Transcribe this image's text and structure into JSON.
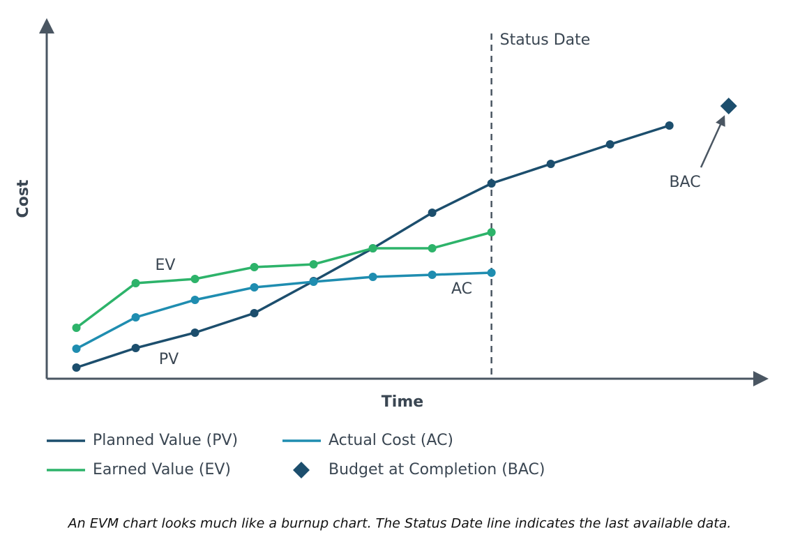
{
  "chart_data": {
    "type": "line",
    "x_label": "Time",
    "y_label": "Cost",
    "xlim": [
      0.5,
      12.65
    ],
    "ylim": [
      0,
      103
    ],
    "status_date": {
      "label": "Status Date",
      "x": 8
    },
    "series": [
      {
        "name": "Planned Value (PV)",
        "color": "#1c4e6d",
        "marker": "circle",
        "x": [
          1,
          2,
          3,
          4,
          5,
          6,
          7,
          8,
          9,
          10,
          11
        ],
        "values": [
          3.2,
          8.8,
          13.2,
          18.8,
          28,
          37.4,
          47.6,
          56,
          61.6,
          67.2,
          72.6
        ]
      },
      {
        "name": "Actual Cost (AC)",
        "color": "#1f8db0",
        "marker": "circle",
        "x": [
          1,
          2,
          3,
          4,
          5,
          6,
          7,
          8
        ],
        "values": [
          8.6,
          17.6,
          22.6,
          26.2,
          27.8,
          29.2,
          29.8,
          30.4
        ]
      },
      {
        "name": "Earned Value (EV)",
        "color": "#2db36a",
        "marker": "circle",
        "x": [
          1,
          2,
          3,
          4,
          5,
          6,
          7,
          8
        ],
        "values": [
          14.6,
          27.4,
          28.6,
          32,
          32.8,
          37.4,
          37.4,
          42
        ]
      },
      {
        "name": "Budget at Completion (BAC)",
        "color": "#1c4e6d",
        "marker": "diamond",
        "x": [
          12
        ],
        "values": [
          78.2
        ]
      }
    ],
    "annotations": [
      "EV",
      "AC",
      "PV",
      "BAC"
    ],
    "caption": "An EVM chart looks much like a burnup chart. The Status Date line indicates the last available data."
  }
}
